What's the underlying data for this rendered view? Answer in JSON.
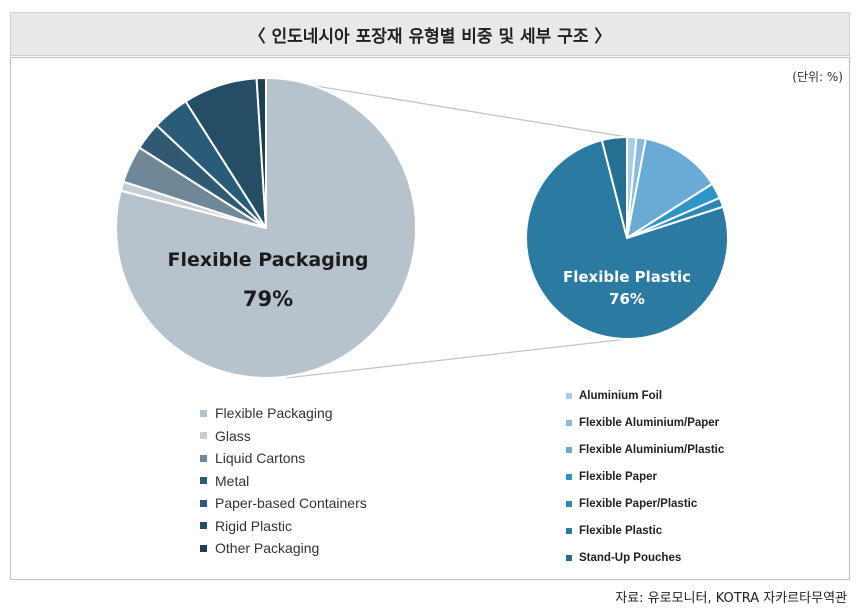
{
  "header": {
    "title": "〈 인도네시아 포장재 유형별 비중 및 세부 구조 〉"
  },
  "unit_label": "(단위: %)",
  "source": "자료: 유로모니터, KOTRA 자카르타무역관",
  "chart_data": [
    {
      "type": "pie",
      "slices": [
        {
          "name": "Flexible Packaging",
          "value": 79,
          "color": "#b7c3cc"
        },
        {
          "name": "Glass",
          "value": 1,
          "color": "#c5ced5"
        },
        {
          "name": "Liquid Cartons",
          "value": 4,
          "color": "#6f8796"
        },
        {
          "name": "Metal",
          "value": 3,
          "color": "#2f5a72"
        },
        {
          "name": "Paper-based Containers",
          "value": 4,
          "color": "#285c78"
        },
        {
          "name": "Rigid Plastic",
          "value": 8,
          "color": "#244d66"
        },
        {
          "name": "Other Packaging",
          "value": 1,
          "color": "#1e3e52"
        }
      ],
      "center_label": "Flexible Packaging",
      "center_value": "79%"
    },
    {
      "type": "pie",
      "slices": [
        {
          "name": "Aluminium Foil",
          "value": 1.5,
          "color": "#a9cde3"
        },
        {
          "name": "Flexible Aluminium/Paper",
          "value": 1.5,
          "color": "#86bddd"
        },
        {
          "name": "Flexible Aluminium/Plastic",
          "value": 13,
          "color": "#6aabd6"
        },
        {
          "name": "Flexible Paper",
          "value": 2.5,
          "color": "#2f94c6"
        },
        {
          "name": "Flexible Paper/Plastic",
          "value": 1.5,
          "color": "#2c88b5"
        },
        {
          "name": "Flexible Plastic",
          "value": 76,
          "color": "#2a7aa2"
        },
        {
          "name": "Stand-Up Pouches",
          "value": 4,
          "color": "#246f92"
        }
      ],
      "center_label": "Flexible Plastic",
      "center_value": "76%"
    }
  ],
  "colors": {
    "header_bg": "#e9e9e9",
    "connector": "#c4c4c4",
    "slice_edge": "#ffffff"
  }
}
